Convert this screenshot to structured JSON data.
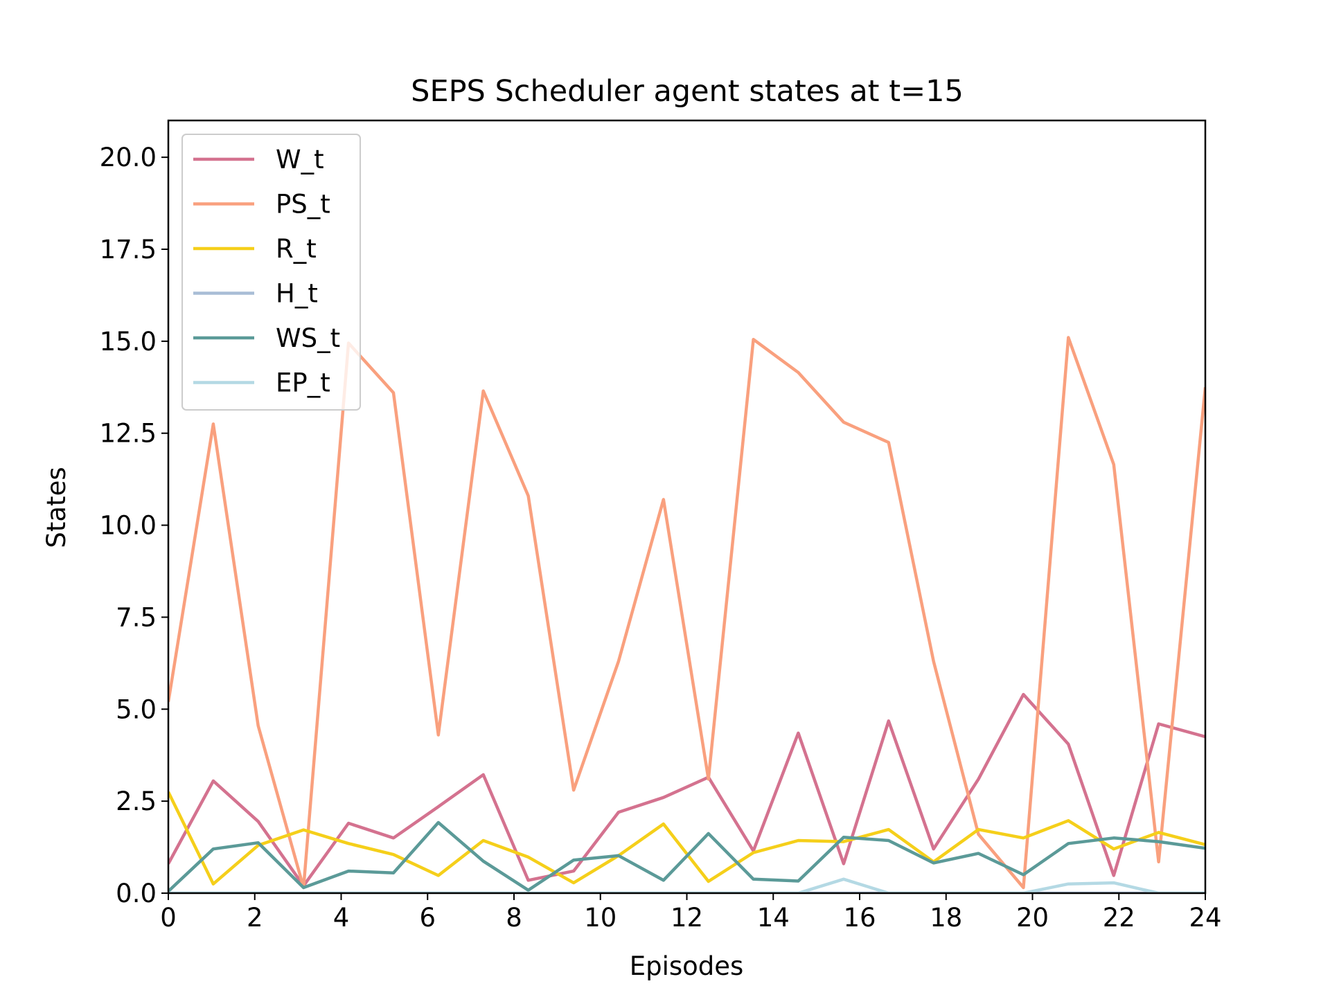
{
  "chart_data": {
    "type": "line",
    "title": "SEPS Scheduler agent states at t=15",
    "xlabel": "Episodes",
    "ylabel": "States",
    "xlim": [
      0,
      24
    ],
    "ylim": [
      0,
      21
    ],
    "xticks": [
      0,
      2,
      4,
      6,
      8,
      10,
      12,
      14,
      16,
      18,
      20,
      22,
      24
    ],
    "xtick_labels": [
      "0",
      "2",
      "4",
      "6",
      "8",
      "10",
      "12",
      "14",
      "16",
      "18",
      "20",
      "22",
      "24"
    ],
    "yticks": [
      0,
      2.5,
      5,
      7.5,
      10,
      12.5,
      15,
      17.5,
      20
    ],
    "ytick_labels": [
      "0.0",
      "2.5",
      "5.0",
      "7.5",
      "10.0",
      "12.5",
      "15.0",
      "17.5",
      "20.0"
    ],
    "grid": false,
    "legend_position": "top-left",
    "x": [
      0,
      1.04,
      2.08,
      3.13,
      4.17,
      5.21,
      6.25,
      7.29,
      8.33,
      9.38,
      10.42,
      11.46,
      12.5,
      13.54,
      14.58,
      15.63,
      16.67,
      17.71,
      18.75,
      19.79,
      20.83,
      21.88,
      22.92,
      24
    ],
    "series": [
      {
        "name": "W_t",
        "color": "#d4728f",
        "values": [
          0.8,
          3.05,
          1.95,
          0.2,
          1.9,
          1.5,
          2.35,
          3.22,
          0.35,
          0.6,
          2.2,
          2.6,
          3.15,
          1.15,
          4.35,
          0.8,
          4.68,
          1.2,
          3.1,
          5.4,
          4.05,
          0.48,
          4.6,
          4.25
        ]
      },
      {
        "name": "PS_t",
        "color": "#f9a07e",
        "values": [
          5.2,
          12.75,
          4.55,
          0.15,
          14.95,
          13.6,
          4.3,
          13.65,
          10.8,
          2.8,
          6.3,
          10.7,
          3.1,
          15.05,
          14.15,
          12.8,
          12.25,
          6.3,
          1.6,
          0.15,
          15.1,
          11.65,
          0.85,
          13.75
        ]
      },
      {
        "name": "R_t",
        "color": "#f5cf1a",
        "values": [
          2.75,
          0.25,
          1.3,
          1.72,
          1.35,
          1.05,
          0.48,
          1.43,
          0.98,
          0.28,
          1.02,
          1.88,
          0.32,
          1.1,
          1.43,
          1.4,
          1.73,
          0.85,
          1.73,
          1.5,
          1.97,
          1.2,
          1.65,
          1.32
        ]
      },
      {
        "name": "H_t",
        "color": "#a8bdd6",
        "values": [
          0,
          0,
          0,
          0,
          0,
          0,
          0,
          0,
          0,
          0,
          0,
          0,
          0,
          0,
          0,
          0,
          0,
          0,
          0,
          0,
          0,
          0,
          0,
          0
        ]
      },
      {
        "name": "WS_t",
        "color": "#5b9a98",
        "values": [
          0.05,
          1.2,
          1.37,
          0.15,
          0.6,
          0.55,
          1.92,
          0.87,
          0.08,
          0.9,
          1.02,
          0.35,
          1.62,
          0.38,
          0.33,
          1.52,
          1.43,
          0.82,
          1.08,
          0.5,
          1.35,
          1.5,
          1.4,
          1.22
        ]
      },
      {
        "name": "EP_t",
        "color": "#b4d9e4",
        "values": [
          0,
          0,
          0,
          0,
          0,
          0,
          0,
          0,
          0,
          0,
          0,
          0,
          0,
          0,
          0,
          0.38,
          0,
          0,
          0,
          0,
          0.25,
          0.28,
          0,
          0
        ]
      }
    ]
  }
}
